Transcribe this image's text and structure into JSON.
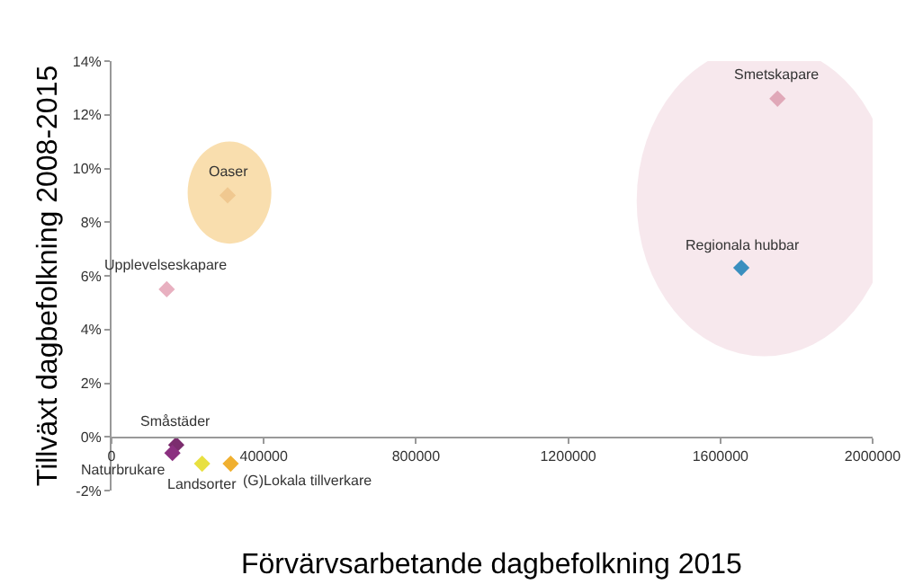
{
  "chart_data": {
    "type": "scatter",
    "xlabel": "Förvärvsarbetande dagbefolkning 2015",
    "ylabel": "Tillväxt dagbefolkning 2008-2015",
    "series": [
      {
        "name": "Smetskapare",
        "color": "#e0a8b8",
        "x": [
          1750000
        ],
        "values": [
          12.6
        ]
      },
      {
        "name": "Regionala hubbar",
        "color": "#3a8fbf",
        "x": [
          1655000
        ],
        "values": [
          6.3
        ]
      },
      {
        "name": "Oaser",
        "color": "#f0c890",
        "x": [
          305000
        ],
        "values": [
          9.0
        ]
      },
      {
        "name": "Upplevelseskapare",
        "color": "#e8b0c0",
        "x": [
          145000
        ],
        "values": [
          5.5
        ]
      },
      {
        "name": "Småstäder",
        "color": "#7b2d6e",
        "x": [
          170000
        ],
        "values": [
          -0.3
        ]
      },
      {
        "name": "Naturbrukare",
        "color": "#8b3080",
        "x": [
          160000
        ],
        "values": [
          -0.6
        ]
      },
      {
        "name": "Landsorter",
        "color": "#e8e040",
        "x": [
          238000
        ],
        "values": [
          -1.0
        ]
      },
      {
        "name": "(G)Lokala tillverkare",
        "color": "#f0b030",
        "x": [
          313000
        ],
        "values": [
          -1.0
        ]
      }
    ],
    "xlim": [
      0,
      2000000
    ],
    "xticks": [
      0,
      400000,
      800000,
      1200000,
      1600000,
      2000000
    ],
    "ylim": [
      -2,
      14
    ],
    "yticks": [
      {
        "value": -2,
        "label": "-2%"
      },
      {
        "value": 0,
        "label": "0%"
      },
      {
        "value": 2,
        "label": "2%"
      },
      {
        "value": 4,
        "label": "4%"
      },
      {
        "value": 6,
        "label": "6%"
      },
      {
        "value": 8,
        "label": "8%"
      },
      {
        "value": 10,
        "label": "10%"
      },
      {
        "value": 12,
        "label": "12%"
      },
      {
        "value": 14,
        "label": "14%"
      }
    ],
    "marker": "diamond",
    "grid": false,
    "legend": false
  }
}
